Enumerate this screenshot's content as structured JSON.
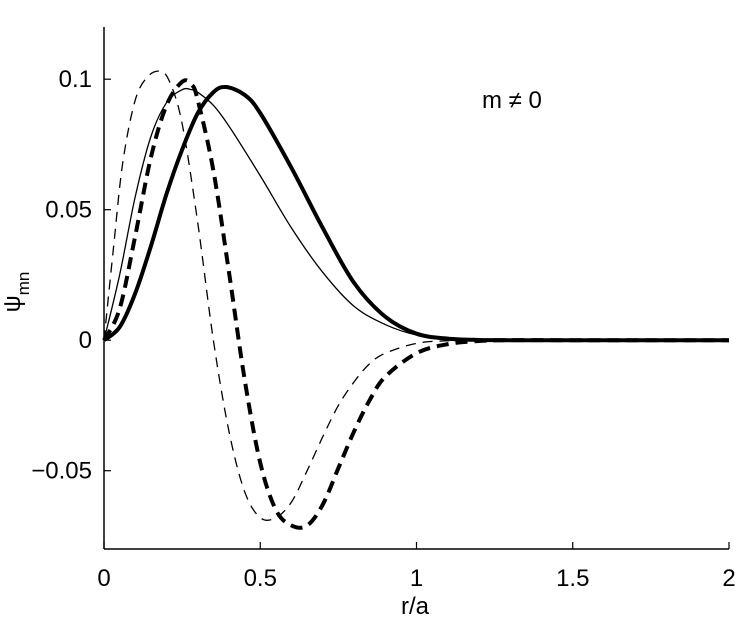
{
  "chart_data": {
    "type": "line",
    "title": "",
    "xlabel": "r/a",
    "ylabel_main": "ψ",
    "ylabel_sub": "mn",
    "annotation": "m ≠ 0",
    "xlim": [
      0,
      2
    ],
    "ylim": [
      -0.08,
      0.12
    ],
    "x_ticks": [
      0,
      0.5,
      1,
      1.5,
      2
    ],
    "x_tick_labels": [
      "0",
      "0.5",
      "1",
      "1.5",
      "2"
    ],
    "y_ticks": [
      -0.05,
      0,
      0.05,
      0.1
    ],
    "y_tick_labels": [
      "−0.05",
      "0",
      "0.05",
      "0.1"
    ],
    "grid": false,
    "box": "left-bottom",
    "series": [
      {
        "style": "thin-solid",
        "x": [
          0,
          0.05,
          0.1,
          0.15,
          0.2,
          0.25,
          0.28,
          0.3,
          0.35,
          0.4,
          0.5,
          0.6,
          0.7,
          0.8,
          0.9,
          1.0,
          1.1,
          1.2,
          1.3,
          1.5,
          1.75,
          2.0
        ],
        "y": [
          0,
          0.025,
          0.055,
          0.078,
          0.091,
          0.096,
          0.096,
          0.095,
          0.09,
          0.082,
          0.063,
          0.043,
          0.026,
          0.013,
          0.006,
          0.002,
          0.0006,
          0.0001,
          0,
          0,
          0,
          0
        ]
      },
      {
        "style": "thick-solid",
        "x": [
          0,
          0.05,
          0.1,
          0.15,
          0.2,
          0.25,
          0.3,
          0.35,
          0.39,
          0.45,
          0.5,
          0.6,
          0.7,
          0.8,
          0.9,
          1.0,
          1.1,
          1.2,
          1.3,
          1.5,
          1.75,
          2.0
        ],
        "y": [
          0,
          0.005,
          0.018,
          0.036,
          0.056,
          0.073,
          0.087,
          0.095,
          0.097,
          0.094,
          0.087,
          0.066,
          0.043,
          0.022,
          0.009,
          0.0025,
          0.0006,
          0.0001,
          0,
          0,
          0,
          0
        ]
      },
      {
        "style": "thin-dashed",
        "x": [
          0,
          0.03,
          0.06,
          0.1,
          0.14,
          0.18,
          0.21,
          0.25,
          0.3,
          0.35,
          0.4,
          0.45,
          0.5,
          0.55,
          0.6,
          0.65,
          0.7,
          0.75,
          0.8,
          0.85,
          0.9,
          1.0,
          1.1,
          1.2,
          1.3,
          1.5,
          1.75,
          2.0
        ],
        "y": [
          0,
          0.035,
          0.068,
          0.092,
          0.101,
          0.103,
          0.099,
          0.083,
          0.045,
          0.0,
          -0.035,
          -0.058,
          -0.068,
          -0.068,
          -0.062,
          -0.05,
          -0.037,
          -0.025,
          -0.016,
          -0.009,
          -0.005,
          -0.0012,
          -0.0002,
          0,
          0,
          0,
          0,
          0
        ]
      },
      {
        "style": "thick-dashed",
        "x": [
          0,
          0.05,
          0.1,
          0.15,
          0.2,
          0.25,
          0.28,
          0.3,
          0.35,
          0.4,
          0.45,
          0.5,
          0.55,
          0.6,
          0.65,
          0.7,
          0.75,
          0.8,
          0.85,
          0.9,
          1.0,
          1.1,
          1.2,
          1.3,
          1.5,
          1.75,
          2.0
        ],
        "y": [
          0,
          0.012,
          0.04,
          0.07,
          0.09,
          0.099,
          0.098,
          0.092,
          0.065,
          0.026,
          -0.015,
          -0.047,
          -0.065,
          -0.071,
          -0.071,
          -0.063,
          -0.049,
          -0.035,
          -0.023,
          -0.014,
          -0.005,
          -0.0015,
          -0.0003,
          0,
          0,
          0,
          0
        ]
      }
    ]
  }
}
